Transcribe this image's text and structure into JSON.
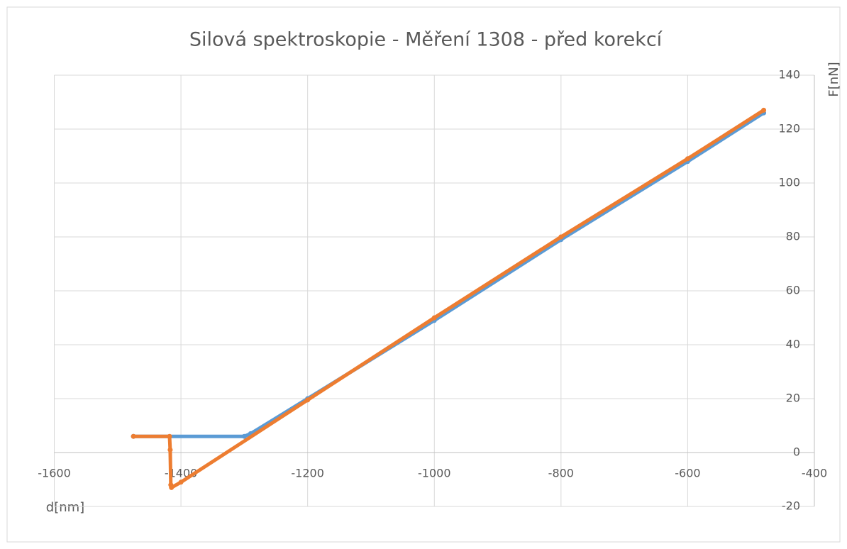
{
  "chart_data": {
    "type": "scatter",
    "title": "Silová spektroskopie - Měření 1308 - před korekcí",
    "xlabel": "d[nm]",
    "ylabel": "F[nN]",
    "xlim": [
      -1600,
      -400
    ],
    "xticks": [
      -1600,
      -1400,
      -1200,
      -1000,
      -800,
      -600,
      -400
    ],
    "ylim": [
      -20,
      140
    ],
    "yticks": [
      -20,
      0,
      20,
      40,
      60,
      80,
      100,
      120,
      140
    ],
    "grid": true,
    "y_axis_position": "right",
    "series": [
      {
        "color": "#5b9bd5",
        "x": [
          -1475,
          -1300,
          -1290,
          -1200,
          -1000,
          -800,
          -600,
          -480
        ],
        "values": [
          6,
          6,
          7,
          20,
          49,
          79,
          108,
          126
        ]
      },
      {
        "color": "#ed7d31",
        "x": [
          -1475,
          -1418,
          -1417,
          -1416,
          -1415,
          -1400,
          -1200,
          -1000,
          -800,
          -600,
          -480
        ],
        "values": [
          6,
          6,
          1,
          -12,
          -13,
          -11,
          19.5,
          50,
          80,
          109,
          127
        ]
      }
    ]
  }
}
